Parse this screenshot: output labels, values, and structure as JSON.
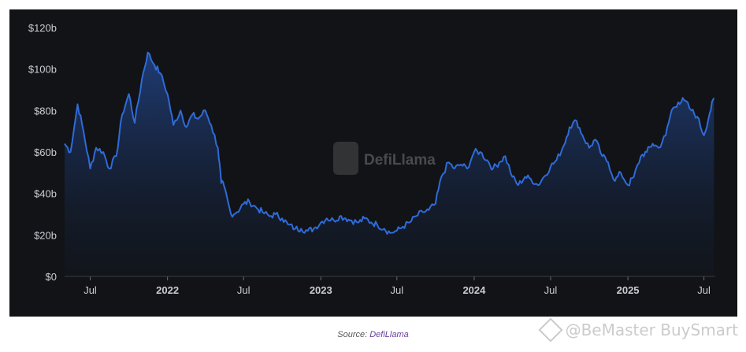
{
  "chart_data": {
    "type": "area",
    "series_color": "#2f6bd8",
    "background": "#111316",
    "ylim": [
      0,
      120
    ],
    "y_ticks": [
      {
        "value": 0,
        "label": "$0"
      },
      {
        "value": 20,
        "label": "$20b"
      },
      {
        "value": 40,
        "label": "$40b"
      },
      {
        "value": 60,
        "label": "$60b"
      },
      {
        "value": 80,
        "label": "$80b"
      },
      {
        "value": 100,
        "label": "$100b"
      },
      {
        "value": 120,
        "label": "$120b"
      }
    ],
    "x_ticks": [
      {
        "date": "2021-07-01",
        "label": "Jul",
        "bold": false
      },
      {
        "date": "2022-01-01",
        "label": "2022",
        "bold": true
      },
      {
        "date": "2022-07-01",
        "label": "Jul",
        "bold": false
      },
      {
        "date": "2023-01-01",
        "label": "2023",
        "bold": true
      },
      {
        "date": "2023-07-01",
        "label": "Jul",
        "bold": false
      },
      {
        "date": "2024-01-01",
        "label": "2024",
        "bold": true
      },
      {
        "date": "2024-07-01",
        "label": "Jul",
        "bold": false
      },
      {
        "date": "2025-01-01",
        "label": "2025",
        "bold": true
      },
      {
        "date": "2025-07-01",
        "label": "Jul",
        "bold": false
      }
    ],
    "x": [
      "2021-05-01",
      "2021-05-15",
      "2021-06-01",
      "2021-06-15",
      "2021-07-01",
      "2021-07-15",
      "2021-08-01",
      "2021-08-15",
      "2021-09-01",
      "2021-09-15",
      "2021-10-01",
      "2021-10-15",
      "2021-11-01",
      "2021-11-15",
      "2021-12-01",
      "2021-12-15",
      "2022-01-01",
      "2022-01-15",
      "2022-02-01",
      "2022-02-15",
      "2022-03-01",
      "2022-03-15",
      "2022-04-01",
      "2022-04-15",
      "2022-05-01",
      "2022-05-09",
      "2022-05-15",
      "2022-06-01",
      "2022-06-15",
      "2022-07-01",
      "2022-07-15",
      "2022-08-01",
      "2022-08-15",
      "2022-09-01",
      "2022-09-15",
      "2022-10-01",
      "2022-10-15",
      "2022-11-01",
      "2022-11-15",
      "2022-12-01",
      "2022-12-15",
      "2023-01-01",
      "2023-01-15",
      "2023-02-01",
      "2023-02-15",
      "2023-03-01",
      "2023-03-15",
      "2023-04-01",
      "2023-04-15",
      "2023-05-01",
      "2023-05-15",
      "2023-06-01",
      "2023-06-15",
      "2023-07-01",
      "2023-07-15",
      "2023-08-01",
      "2023-08-15",
      "2023-09-01",
      "2023-09-15",
      "2023-10-01",
      "2023-10-15",
      "2023-11-01",
      "2023-11-15",
      "2023-12-01",
      "2023-12-15",
      "2024-01-01",
      "2024-01-15",
      "2024-02-01",
      "2024-02-15",
      "2024-03-01",
      "2024-03-15",
      "2024-04-01",
      "2024-04-15",
      "2024-05-01",
      "2024-05-15",
      "2024-06-01",
      "2024-06-15",
      "2024-07-01",
      "2024-07-15",
      "2024-08-01",
      "2024-08-15",
      "2024-09-01",
      "2024-09-15",
      "2024-10-01",
      "2024-10-15",
      "2024-11-01",
      "2024-11-15",
      "2024-12-01",
      "2024-12-15",
      "2025-01-01",
      "2025-01-15",
      "2025-02-01",
      "2025-02-15",
      "2025-03-01",
      "2025-03-15",
      "2025-04-01",
      "2025-04-15",
      "2025-05-01",
      "2025-05-15",
      "2025-06-01",
      "2025-06-15",
      "2025-07-01",
      "2025-07-15",
      "2025-07-25"
    ],
    "values": [
      64,
      60,
      83,
      70,
      52,
      62,
      60,
      52,
      58,
      78,
      88,
      74,
      95,
      108,
      102,
      98,
      88,
      73,
      80,
      72,
      78,
      76,
      80,
      73,
      62,
      45,
      44,
      30,
      31,
      35,
      36,
      33,
      31,
      29,
      30,
      28,
      25,
      23,
      23,
      22,
      23,
      26,
      28,
      27,
      29,
      28,
      27,
      26,
      28,
      26,
      25,
      23,
      21,
      22,
      24,
      26,
      29,
      31,
      32,
      35,
      48,
      55,
      52,
      54,
      52,
      60,
      60,
      56,
      52,
      55,
      58,
      48,
      44,
      48,
      47,
      44,
      48,
      53,
      56,
      63,
      72,
      75,
      68,
      62,
      66,
      58,
      55,
      46,
      50,
      44,
      48,
      58,
      60,
      64,
      62,
      68,
      80,
      84,
      85,
      80,
      77,
      68,
      79,
      86
    ],
    "title": "",
    "xlabel": "",
    "ylabel": "",
    "grid": false,
    "legend": "none"
  },
  "watermark_center": "DefiLlama",
  "source": {
    "prefix": "Source: ",
    "link": "DefiLlama"
  },
  "overlay_watermark": "@BeMaster BuySmart"
}
